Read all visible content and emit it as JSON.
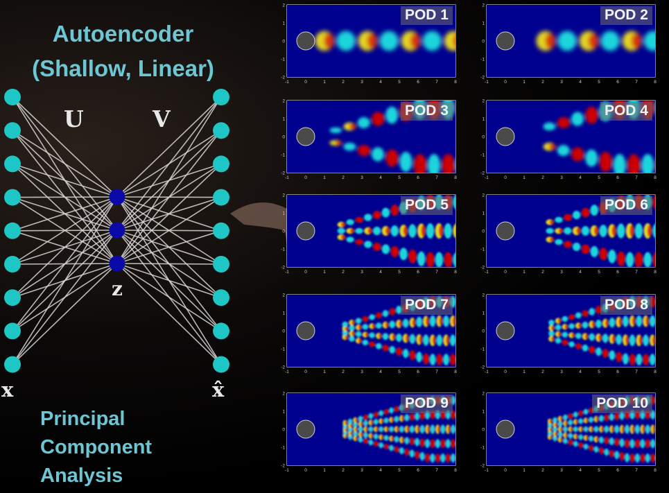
{
  "title": {
    "line1": "Autoencoder",
    "line2": "(Shallow, Linear)"
  },
  "pca": {
    "line1": "Principal",
    "line2": "Component",
    "line3": "Analysis"
  },
  "network": {
    "encoder_label": "U",
    "decoder_label": "V",
    "latent_label": "z",
    "input_label": "x",
    "output_label": "x̂",
    "input_nodes": 9,
    "latent_nodes": 3,
    "output_nodes": 9,
    "colors": {
      "io_node": "#1ec6c6",
      "latent_node": "#0a0aa8",
      "edge": "#d8d8d8"
    }
  },
  "panels": [
    {
      "label": "POD 1"
    },
    {
      "label": "POD 2"
    },
    {
      "label": "POD 3"
    },
    {
      "label": "POD 4"
    },
    {
      "label": "POD 5"
    },
    {
      "label": "POD 6"
    },
    {
      "label": "POD 7"
    },
    {
      "label": "POD 8"
    },
    {
      "label": "POD 9"
    },
    {
      "label": "POD 10"
    }
  ],
  "axis": {
    "x_ticks": [
      "-1",
      "0",
      "1",
      "2",
      "3",
      "4",
      "5",
      "6",
      "7",
      "8"
    ],
    "y_ticks": [
      "2",
      "1",
      "0",
      "-1",
      "-2"
    ],
    "colormap": [
      "#00008f",
      "#1ee0e0",
      "#ffffff",
      "#f0e020",
      "#d00000"
    ]
  }
}
